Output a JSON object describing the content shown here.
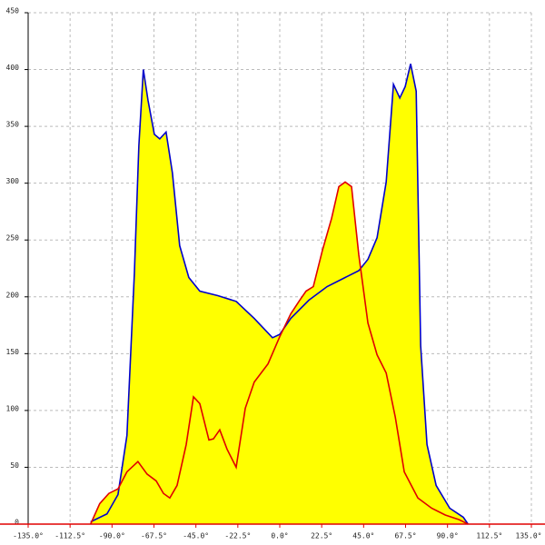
{
  "chart_data": {
    "type": "area-line",
    "xlim": [
      -135,
      135
    ],
    "ylim": [
      0,
      450
    ],
    "xticks": [
      {
        "value": -135,
        "label": "-135.0°"
      },
      {
        "value": -112.5,
        "label": "-112.5°"
      },
      {
        "value": -90,
        "label": "-90.0°"
      },
      {
        "value": -67.5,
        "label": "-67.5°"
      },
      {
        "value": -45,
        "label": "-45.0°"
      },
      {
        "value": -22.5,
        "label": "-22.5°"
      },
      {
        "value": 0,
        "label": "0.0°"
      },
      {
        "value": 22.5,
        "label": "22.5°"
      },
      {
        "value": 45,
        "label": "45.0°"
      },
      {
        "value": 67.5,
        "label": "67.5°"
      },
      {
        "value": 90,
        "label": "90.0°"
      },
      {
        "value": 112.5,
        "label": "112.5°"
      },
      {
        "value": 135,
        "label": "135.0°"
      }
    ],
    "yticks": [
      0,
      50,
      100,
      150,
      200,
      250,
      300,
      350,
      400,
      450
    ],
    "grid": true,
    "fill_color": "#ffff00",
    "axis_color": "#e00000",
    "series": [
      {
        "color": "#0000cc",
        "x": [
          -101.5,
          -92.7,
          -86.8,
          -82,
          -78,
          -75.6,
          -73.2,
          -70.7,
          -67.3,
          -64.4,
          -61,
          -57.6,
          -53.7,
          -48.8,
          -42.9,
          -33.2,
          -23.4,
          -13.7,
          -3.9,
          0,
          5.9,
          15.6,
          25.4,
          35.1,
          42.4,
          47.3,
          52.2,
          57.1,
          61,
          64.4,
          67.3,
          70.2,
          73.2,
          75.6,
          79,
          83.9,
          91.2,
          98.5,
          101
        ],
        "values": [
          2,
          9,
          26,
          78,
          221,
          333,
          400,
          373,
          343,
          339,
          345,
          309,
          245,
          217,
          205,
          201,
          196,
          181,
          164,
          167,
          181,
          197,
          209,
          217,
          223,
          233,
          252,
          301,
          387,
          375,
          385,
          405,
          381,
          157,
          70,
          34,
          14,
          6,
          0
        ]
      },
      {
        "color": "#e00000",
        "x": [
          -101.5,
          -96.6,
          -91.7,
          -86.8,
          -82,
          -76.1,
          -71.2,
          -66.3,
          -62.4,
          -59,
          -55.1,
          -50.2,
          -46.3,
          -42.9,
          -38,
          -35.6,
          -32.2,
          -28.3,
          -23.4,
          -18.5,
          -13.7,
          -6.3,
          0,
          5.9,
          10.7,
          14.1,
          18,
          22.9,
          27.8,
          31.7,
          35.1,
          38.5,
          42.4,
          47.3,
          52.2,
          57.1,
          62,
          66.8,
          74.1,
          81.5,
          88.8,
          96.1,
          101
        ],
        "values": [
          0,
          18,
          27,
          31,
          46,
          55,
          44,
          38,
          27,
          23,
          34,
          70,
          112,
          106,
          74,
          75,
          83,
          66,
          50,
          102,
          125,
          141,
          165,
          185,
          197,
          205,
          209,
          241,
          269,
          297,
          301,
          297,
          237,
          177,
          149,
          133,
          94,
          46,
          23,
          14,
          8,
          4,
          0
        ]
      }
    ]
  }
}
